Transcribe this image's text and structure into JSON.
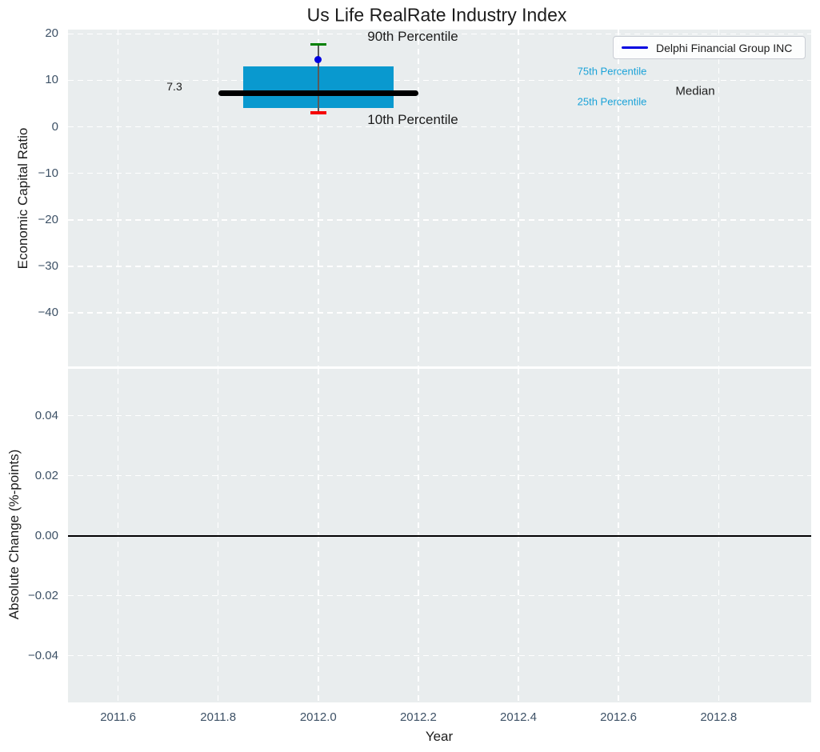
{
  "figure": {
    "title": "Us Life RealRate Industry Index"
  },
  "legend": {
    "label": "Delphi Financial Group INC"
  },
  "colors": {
    "plot_bg": "#e9edee",
    "grid": "#ffffff",
    "box_fill": "#0999cf",
    "median_line": "#000000",
    "p90_cap": "#008000",
    "p10_cap": "#f50000",
    "whisker": "#5a5a5a",
    "company_dot": "#0000e0",
    "legend_line": "#0000e0",
    "tick_text": "#3d5166",
    "cyan_text": "#1aa2d8",
    "text": "#1c1c1c",
    "zero_line": "#000000"
  },
  "chart_data": [
    {
      "type": "boxplot",
      "title": "Us Life RealRate Industry Index",
      "ylabel": "Economic Capital Ratio",
      "xlim": [
        2011.5,
        2012.985
      ],
      "ylim": [
        -51.5,
        20.9
      ],
      "xticks": [
        2011.6,
        2011.8,
        2012.0,
        2012.2,
        2012.4,
        2012.6,
        2012.8
      ],
      "yticks": [
        20,
        10,
        0,
        -10,
        -20,
        -30,
        -40
      ],
      "ytick_labels": [
        "20",
        "10",
        "0",
        "−10",
        "−20",
        "−30",
        "−40"
      ],
      "grid": true,
      "legend_position": "upper right",
      "box": {
        "year": 2012.0,
        "box_left_year": 2011.85,
        "box_right_year": 2012.15,
        "median_left_year": 2011.8,
        "median_right_year": 2012.2,
        "p90": 17.7,
        "p75": 13.0,
        "median": 7.3,
        "p25": 4.0,
        "p10": 3.0,
        "company_value": 14.4
      },
      "annotations": [
        {
          "id": "p90",
          "text": "90th Percentile",
          "color": "#1c1c1c"
        },
        {
          "id": "p10",
          "text": "10th Percentile",
          "color": "#1c1c1c"
        },
        {
          "id": "p75",
          "text": "75th Percentile",
          "color": "#1aa2d8"
        },
        {
          "id": "p25",
          "text": "25th Percentile",
          "color": "#1aa2d8"
        },
        {
          "id": "median",
          "text": "Median",
          "color": "#1c1c1c"
        },
        {
          "id": "median_value",
          "text": "7.3",
          "color": "#1c1c1c"
        }
      ]
    },
    {
      "type": "line",
      "ylabel": "Absolute Change (%-points)",
      "xlabel": "Year",
      "xlim": [
        2011.5,
        2012.985
      ],
      "ylim": [
        -0.0556,
        0.0556
      ],
      "xticks": [
        2011.6,
        2011.8,
        2012.0,
        2012.2,
        2012.4,
        2012.6,
        2012.8
      ],
      "xtick_labels": [
        "2011.6",
        "2011.8",
        "2012.0",
        "2012.2",
        "2012.4",
        "2012.6",
        "2012.8"
      ],
      "yticks": [
        0.04,
        0.02,
        0.0,
        -0.02,
        -0.04
      ],
      "ytick_labels": [
        "0.04",
        "0.02",
        "0.00",
        "−0.02",
        "−0.04"
      ],
      "grid": true,
      "zero_line": 0.0,
      "series": []
    }
  ]
}
